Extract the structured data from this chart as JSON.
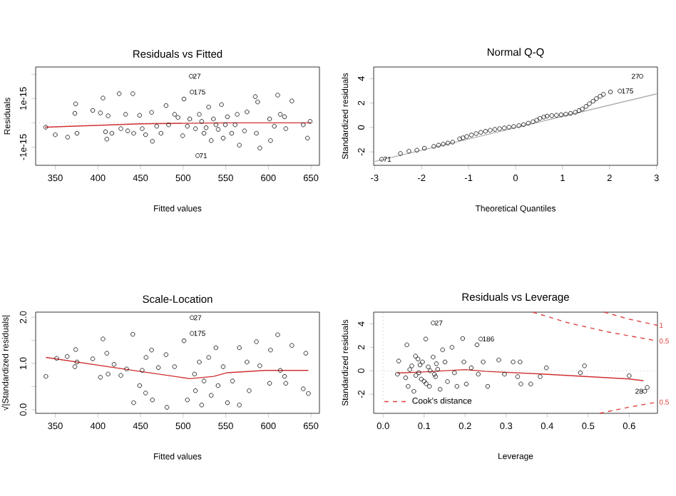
{
  "chart_data": [
    {
      "type": "scatter",
      "title": "Residuals vs Fitted",
      "xlabel": "Fitted values",
      "ylabel": "Residuals",
      "xlim": [
        327,
        660
      ],
      "ylim": [
        -1.75e-15,
        2.3e-15
      ],
      "xticks": [
        350,
        400,
        450,
        500,
        550,
        600,
        650
      ],
      "yticks": [
        -1e-15,
        {
          "value": 0,
          "label": null
        },
        1e-15,
        {
          "value": 2e-15,
          "label": null
        }
      ],
      "marker": "circle",
      "series": [
        {
          "color": "#000000",
          "x": [
            338.8,
            350,
            364.5,
            374,
            373,
            375.5,
            394,
            406,
            403,
            412,
            409,
            410.5,
            416.4,
            425,
            427,
            432.5,
            441,
            435,
            442,
            449,
            452,
            456,
            463,
            464,
            469,
            474,
            480,
            483,
            490,
            494,
            501,
            499.5,
            509.5,
            510.4,
            517,
            519,
            524.5,
            530,
            533,
            538.5,
            545,
            547,
            552,
            557,
            561,
            563.5,
            566,
            572,
            575,
            584.7,
            587.5,
            586,
            590,
            601.5,
            602.6,
            607,
            611,
            614,
            619,
            620.5,
            627.6,
            641,
            646,
            649,
            505,
            507.8,
            514.5,
            521.8,
            527,
            535.6,
            541.2,
            549.6
          ],
          "values": [
            -1.8e-16,
            -4.9e-16,
            -5.9e-16,
            7.8e-16,
            3.9e-16,
            -4.3e-16,
            5.1e-16,
            1.02e-15,
            4.1e-16,
            2.9e-16,
            -3.7e-16,
            -6.7e-16,
            -4.3e-16,
            1.2e-15,
            -2.4e-16,
            3.5e-16,
            1.2e-15,
            -3.3e-16,
            -4.3e-16,
            3.1e-16,
            -2.4e-16,
            -4.9e-16,
            4.3e-16,
            -7.6e-16,
            -1.4e-16,
            -4.3e-16,
            7.1e-16,
            -8e-17,
            3.5e-16,
            2.2e-16,
            9.8e-16,
            -5.3e-16,
            1.92e-15,
            1.27e-15,
            -1.35e-15,
            3.5e-16,
            -4.3e-16,
            6.5e-16,
            -7.3e-16,
            -8e-17,
            7.5e-16,
            -6.3e-16,
            2.5e-16,
            -4.3e-16,
            -8e-17,
            3.5e-16,
            -9.2e-16,
            -3.3e-16,
            4.5e-16,
            1.08e-15,
            8.6e-16,
            -4.3e-16,
            -1.04e-15,
            1.6e-16,
            -7.3e-16,
            -1.4e-16,
            1.14e-15,
            3.5e-16,
            2.5e-16,
            -2.4e-16,
            9e-16,
            -8e-17,
            -6.3e-16,
            6e-17,
            -1.4e-16,
            1.6e-16,
            -2.4e-16,
            6e-17,
            -2e-16,
            1.6e-16,
            -2.7e-16,
            -8e-17
          ]
        },
        {
          "type": "line",
          "marker": "none",
          "color": "#d03030",
          "x": [
            338,
            450,
            550,
            650
          ],
          "values": [
            -1.8e-16,
            -4e-17,
            0,
            0
          ]
        }
      ],
      "ref_lines": [
        {
          "axis": "y",
          "value": 0,
          "color": "#bebebe",
          "line_style": "dotted"
        }
      ],
      "annotations": [
        {
          "text": "27",
          "x": 509.5,
          "y": 1.92e-15
        },
        {
          "text": "175",
          "x": 510.4,
          "y": 1.27e-15
        },
        {
          "text": "71",
          "x": 517,
          "y": -1.35e-15
        }
      ]
    },
    {
      "type": "scatter",
      "title": "Normal Q-Q",
      "xlabel": "Theoretical Quantiles",
      "ylabel": "Standardized residuals",
      "xlim": [
        -3.02,
        3.02
      ],
      "ylim": [
        -3.1,
        4.95
      ],
      "xticks": [
        -3,
        -2,
        -1,
        0,
        1,
        2,
        3
      ],
      "yticks": [
        -2,
        0,
        2,
        4
      ],
      "marker": "circle",
      "series": [
        {
          "color": "#000000",
          "x": [
            -2.85,
            -2.45,
            -2.27,
            -2.1,
            -1.94,
            -1.74,
            -1.54,
            -1.34,
            -1.19,
            -1.04,
            -0.84,
            -0.64,
            -0.44,
            -0.24,
            -0.04,
            0.17,
            0.37,
            0.52,
            0.67,
            0.87,
            1.07,
            1.27,
            1.42,
            1.57,
            1.72,
            1.87,
            2.02,
            2.22,
            2.67,
            -1.64,
            -1.44,
            -1.12,
            -0.94,
            -0.74,
            -0.54,
            -0.34,
            -0.14,
            0.07,
            0.27,
            0.45,
            0.6,
            0.77,
            0.97,
            1.17,
            1.35,
            1.5,
            1.65,
            1.8
          ],
          "values": [
            -2.6,
            -2.13,
            -1.94,
            -1.86,
            -1.7,
            -1.55,
            -1.36,
            -1.2,
            -0.93,
            -0.74,
            -0.5,
            -0.31,
            -0.16,
            -0.04,
            0.08,
            0.23,
            0.47,
            0.74,
            0.93,
            1.0,
            1.09,
            1.24,
            1.51,
            1.94,
            2.36,
            2.71,
            2.91,
            2.98,
            4.19,
            -1.45,
            -1.28,
            -0.85,
            -0.62,
            -0.4,
            -0.23,
            -0.1,
            0.02,
            0.15,
            0.35,
            0.6,
            0.85,
            0.97,
            1.04,
            1.15,
            1.38,
            1.72,
            2.15,
            2.55
          ]
        },
        {
          "type": "line",
          "marker": "none",
          "color": "#b0b0b0",
          "x": [
            -3,
            3
          ],
          "values": [
            -2.79,
            2.75
          ]
        }
      ],
      "annotations": [
        {
          "text": "71",
          "x": -2.85,
          "y": -2.6
        },
        {
          "text": "175",
          "x": 2.22,
          "y": 2.98
        },
        {
          "text": "27",
          "x": 2.67,
          "y": 4.19
        }
      ]
    },
    {
      "type": "scatter",
      "title": "Scale-Location",
      "xlabel": "Fitted values",
      "ylabel": "√|Standardized residuals|",
      "xlim": [
        327,
        660
      ],
      "ylim": [
        -0.08,
        2.11
      ],
      "xticks": [
        350,
        400,
        450,
        500,
        550,
        600,
        650
      ],
      "yticks": [
        {
          "value": 0,
          "label": "0.0"
        },
        {
          "value": 0.5,
          "label": null
        },
        {
          "value": 1,
          "label": "1.0"
        },
        {
          "value": 1.5,
          "label": null
        },
        {
          "value": 2,
          "label": "2.0"
        }
      ],
      "marker": "circle",
      "series": [
        {
          "color": "#000000",
          "x": [
            339,
            351.6,
            364,
            374,
            373,
            375.5,
            394,
            406,
            403,
            410.5,
            412,
            419,
            427,
            433.7,
            441,
            442,
            449,
            452,
            456.5,
            456,
            463,
            464,
            471,
            480,
            481,
            490,
            501,
            505,
            510.4,
            510.4,
            513.4,
            514.5,
            519,
            521.8,
            524.5,
            530,
            533,
            538.5,
            541,
            547,
            552,
            558,
            566,
            566,
            575,
            577.5,
            586,
            590,
            601.5,
            602.6,
            611,
            614,
            619,
            620.5,
            627.6,
            641,
            644,
            647
          ],
          "values": [
            0.72,
            1.11,
            1.15,
            1.3,
            0.93,
            1.03,
            1.1,
            1.53,
            0.7,
            1.22,
            0.77,
            0.98,
            0.74,
            0.88,
            1.63,
            0.15,
            0.52,
            0.85,
            1.13,
            0.36,
            1.29,
            0.21,
            0.91,
            1.19,
            0.05,
            0.93,
            1.49,
            0.21,
            1.99,
            1.65,
            0.77,
            0.41,
            1.03,
            0.1,
            0.62,
            1.13,
            0.31,
            1.34,
            0.52,
            0.93,
            0.15,
            0.62,
            1.34,
            0.1,
            1.03,
            0.41,
            1.47,
            0.95,
            0.57,
            1.29,
            1.62,
            0.85,
            0.72,
            0.57,
            1.39,
            0.45,
            1.22,
            0.35
          ]
        },
        {
          "type": "line",
          "marker": "none",
          "color": "#d03030",
          "x": [
            339,
            452,
            497,
            508,
            536,
            552,
            597,
            647
          ],
          "values": [
            1.13,
            0.82,
            0.7,
            0.67,
            0.72,
            0.8,
            0.85,
            0.85
          ]
        }
      ],
      "annotations": [
        {
          "text": "27",
          "x": 510.4,
          "y": 1.99
        },
        {
          "text": "175",
          "x": 510.4,
          "y": 1.65
        }
      ]
    },
    {
      "type": "scatter",
      "title": "Residuals vs Leverage",
      "xlabel": "Leverage",
      "ylabel": "Standardized residuals",
      "xlim": [
        -0.023,
        0.669
      ],
      "ylim": [
        -3.63,
        5.0
      ],
      "xticks": [
        {
          "value": 0,
          "label": "0.0"
        },
        0.1,
        0.2,
        0.3,
        0.4,
        0.5,
        0.6
      ],
      "yticks": [
        -2,
        0,
        2,
        4
      ],
      "marker": "circle",
      "legend": "bottom left",
      "series": [
        {
          "color": "#000000",
          "x": [
            0.035,
            0.038,
            0.058,
            0.061,
            0.07,
            0.075,
            0.079,
            0.087,
            0.093,
            0.096,
            0.104,
            0.11,
            0.113,
            0.122,
            0.122,
            0.128,
            0.133,
            0.139,
            0.145,
            0.151,
            0.157,
            0.168,
            0.174,
            0.18,
            0.194,
            0.197,
            0.203,
            0.215,
            0.229,
            0.238,
            0.232,
            0.244,
            0.255,
            0.282,
            0.296,
            0.317,
            0.328,
            0.334,
            0.336,
            0.36,
            0.383,
            0.398,
            0.481,
            0.491,
            0.6,
            0.644,
            0.638,
            0.065,
            0.08,
            0.09,
            0.1,
            0.115,
            0.125,
            0.13,
            0.085,
            0.055,
            0.105
          ],
          "values": [
            -0.29,
            0.83,
            2.21,
            -1.33,
            0.42,
            -1.75,
            1.25,
            -0.17,
            -0.71,
            0.75,
            2.71,
            0.33,
            -1.33,
            4.08,
            1.17,
            -0.5,
            0.13,
            -1.58,
            1.79,
            0.75,
            -0.92,
            2.0,
            -0.17,
            -1.33,
            2.75,
            0.75,
            -1.13,
            0.25,
            2.21,
            2.71,
            -0.29,
            0.75,
            -1.33,
            0.92,
            -0.29,
            0.75,
            -0.5,
            0.75,
            -1.13,
            -1.13,
            -0.5,
            0.25,
            -0.17,
            0.42,
            -0.42,
            -1.42,
            -1.75,
            0.1,
            -0.4,
            0.5,
            -0.9,
            0.0,
            -0.3,
            0.6,
            1.0,
            -0.6,
            -1.1
          ]
        },
        {
          "type": "line",
          "marker": "none",
          "color": "#d03030",
          "x": [
            0.035,
            0.1,
            0.2,
            0.25,
            0.4,
            0.6,
            0.635
          ],
          "values": [
            -0.2,
            -0.1,
            0.1,
            -0.05,
            -0.3,
            -0.7,
            -0.85
          ]
        },
        {
          "type": "line",
          "marker": "none",
          "line_style": "dashed",
          "name": "Cook's distance",
          "color": "#e04040",
          "x": [
            0.365,
            0.45,
            0.55,
            0.669
          ],
          "values": [
            5.0,
            4.1,
            3.3,
            2.54
          ]
        },
        {
          "type": "line",
          "marker": "none",
          "line_style": "dashed",
          "color": "#e04040",
          "x": [
            0.539,
            0.6,
            0.669
          ],
          "values": [
            5.0,
            4.4,
            3.875
          ]
        },
        {
          "type": "line",
          "marker": "none",
          "line_style": "dashed",
          "color": "#e04040",
          "x": [
            0.528,
            0.6,
            0.669
          ],
          "values": [
            -3.63,
            -3.1,
            -2.67
          ]
        }
      ],
      "ref_lines": [
        {
          "axis": "y",
          "value": 0,
          "color": "#bebebe",
          "line_style": "dotted"
        },
        {
          "axis": "x",
          "value": 0,
          "color": "#bebebe",
          "line_style": "dotted"
        }
      ],
      "annotations": [
        {
          "text": "27",
          "x": 0.122,
          "y": 4.08
        },
        {
          "text": "186",
          "x": 0.238,
          "y": 2.71
        },
        {
          "text": "28",
          "x": 0.638,
          "y": -1.75
        },
        {
          "text": "1",
          "x": 0.669,
          "y": 3.875
        },
        {
          "text": "0.5",
          "x": 0.669,
          "y": 2.54
        },
        {
          "text": "0.5",
          "x": 0.669,
          "y": -2.67
        }
      ]
    }
  ]
}
